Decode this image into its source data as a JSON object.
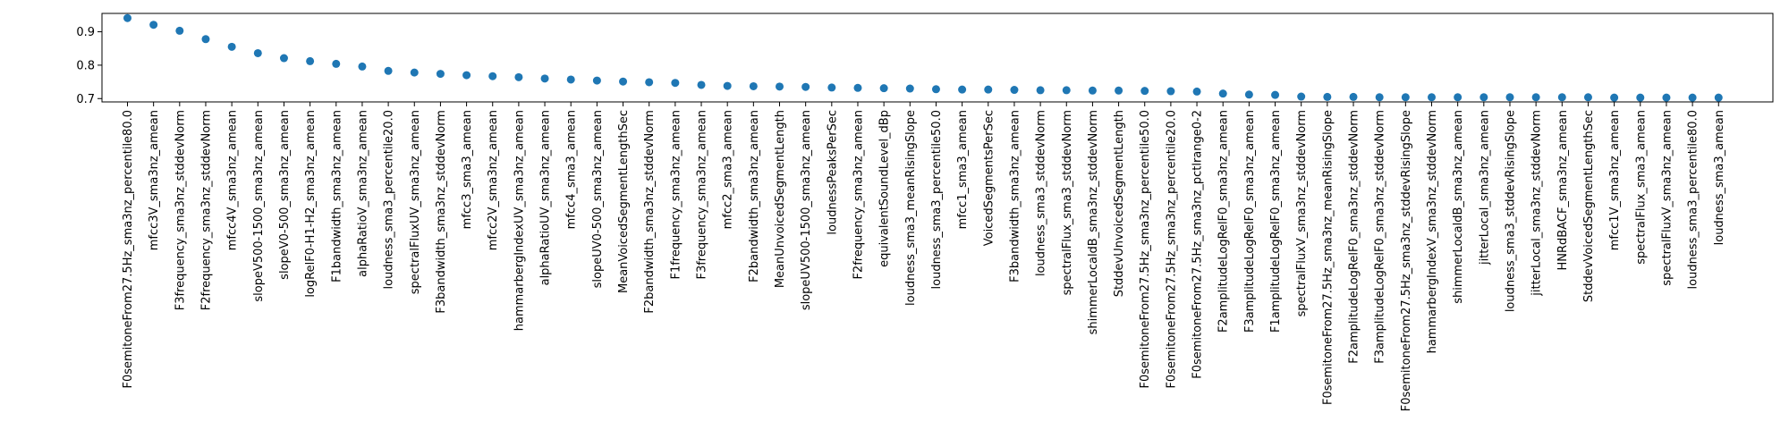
{
  "chart_data": {
    "type": "scatter",
    "title": "",
    "xlabel": "",
    "ylabel": "",
    "ylim": [
      0.69,
      0.955
    ],
    "yticks": [
      0.7,
      0.8,
      0.9
    ],
    "ytick_labels": [
      "0.7",
      "0.8",
      "0.9"
    ],
    "grid": false,
    "marker_color": "#1f77b4",
    "categories": [
      "F0semitoneFrom27.5Hz_sma3nz_percentile80.0",
      "mfcc3V_sma3nz_amean",
      "F3frequency_sma3nz_stddevNorm",
      "F2frequency_sma3nz_stddevNorm",
      "mfcc4V_sma3nz_amean",
      "slopeV500-1500_sma3nz_amean",
      "slopeV0-500_sma3nz_amean",
      "logRelF0-H1-H2_sma3nz_amean",
      "F1bandwidth_sma3nz_amean",
      "alphaRatioV_sma3nz_amean",
      "loudness_sma3_percentile20.0",
      "spectralFluxUV_sma3nz_amean",
      "F3bandwidth_sma3nz_stddevNorm",
      "mfcc3_sma3_amean",
      "mfcc2V_sma3nz_amean",
      "hammarbergIndexUV_sma3nz_amean",
      "alphaRatioUV_sma3nz_amean",
      "mfcc4_sma3_amean",
      "slopeUV0-500_sma3nz_amean",
      "MeanVoicedSegmentLengthSec",
      "F2bandwidth_sma3nz_stddevNorm",
      "F1frequency_sma3nz_amean",
      "F3frequency_sma3nz_amean",
      "mfcc2_sma3_amean",
      "F2bandwidth_sma3nz_amean",
      "MeanUnvoicedSegmentLength",
      "slopeUV500-1500_sma3nz_amean",
      "loudnessPeaksPerSec",
      "F2frequency_sma3nz_amean",
      "equivalentSoundLevel_dBp",
      "loudness_sma3_meanRisingSlope",
      "loudness_sma3_percentile50.0",
      "mfcc1_sma3_amean",
      "VoicedSegmentsPerSec",
      "F3bandwidth_sma3nz_amean",
      "loudness_sma3_stddevNorm",
      "spectralFlux_sma3_stddevNorm",
      "shimmerLocaldB_sma3nz_stddevNorm",
      "StddevUnvoicedSegmentLength",
      "F0semitoneFrom27.5Hz_sma3nz_percentile50.0",
      "F0semitoneFrom27.5Hz_sma3nz_percentile20.0",
      "F0semitoneFrom27.5Hz_sma3nz_pctlrange0-2",
      "F2amplitudeLogRelF0_sma3nz_amean",
      "F3amplitudeLogRelF0_sma3nz_amean",
      "F1amplitudeLogRelF0_sma3nz_amean",
      "spectralFluxV_sma3nz_stddevNorm",
      "F0semitoneFrom27.5Hz_sma3nz_meanRisingSlope",
      "F2amplitudeLogRelF0_sma3nz_stddevNorm",
      "F3amplitudeLogRelF0_sma3nz_stddevNorm",
      "F0semitoneFrom27.5Hz_sma3nz_stddevRisingSlope",
      "hammarbergIndexV_sma3nz_stddevNorm",
      "shimmerLocaldB_sma3nz_amean",
      "jitterLocal_sma3nz_amean",
      "loudness_sma3_stddevRisingSlope",
      "jitterLocal_sma3nz_stddevNorm",
      "HNRdBACF_sma3nz_amean",
      "StddevVoicedSegmentLengthSec",
      "mfcc1V_sma3nz_amean",
      "spectralFlux_sma3_amean",
      "spectralFluxV_sma3nz_amean",
      "loudness_sma3_percentile80.0",
      "loudness_sma3_amean"
    ],
    "values": [
      0.941,
      0.921,
      0.903,
      0.878,
      0.855,
      0.836,
      0.821,
      0.812,
      0.804,
      0.796,
      0.783,
      0.778,
      0.774,
      0.77,
      0.767,
      0.764,
      0.76,
      0.757,
      0.754,
      0.751,
      0.749,
      0.747,
      0.741,
      0.738,
      0.737,
      0.736,
      0.735,
      0.733,
      0.732,
      0.731,
      0.73,
      0.728,
      0.727,
      0.727,
      0.726,
      0.725,
      0.725,
      0.724,
      0.724,
      0.723,
      0.722,
      0.721,
      0.715,
      0.712,
      0.711,
      0.706,
      0.705,
      0.705,
      0.704,
      0.704,
      0.704,
      0.704,
      0.704,
      0.704,
      0.704,
      0.704,
      0.704,
      0.703,
      0.703,
      0.703,
      0.703,
      0.703
    ]
  }
}
